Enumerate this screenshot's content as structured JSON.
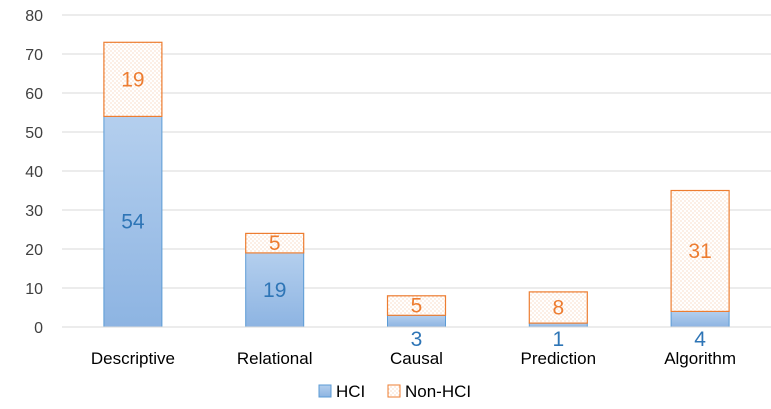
{
  "chart_data": {
    "type": "bar",
    "stacked": true,
    "categories": [
      "Descriptive",
      "Relational",
      "Causal",
      "Prediction",
      "Algorithm"
    ],
    "series": [
      {
        "name": "HCI",
        "values": [
          54,
          19,
          3,
          1,
          4
        ],
        "labels": [
          "54",
          "19",
          "3",
          "1",
          "4"
        ],
        "color": "#5b9bd5",
        "label_color": "#2e75b6"
      },
      {
        "name": "Non-HCI",
        "values": [
          19,
          5,
          5,
          8,
          31
        ],
        "labels": [
          "19",
          "5",
          "5",
          "8",
          "31"
        ],
        "color": "#ed7d31",
        "label_color": "#ed7d31"
      }
    ],
    "ylim": [
      0,
      80
    ],
    "yticks": [
      "0",
      "10",
      "20",
      "30",
      "40",
      "50",
      "60",
      "70",
      "80"
    ],
    "grid": true,
    "legend": "bottom",
    "title": "",
    "xlabel": "",
    "ylabel": ""
  }
}
